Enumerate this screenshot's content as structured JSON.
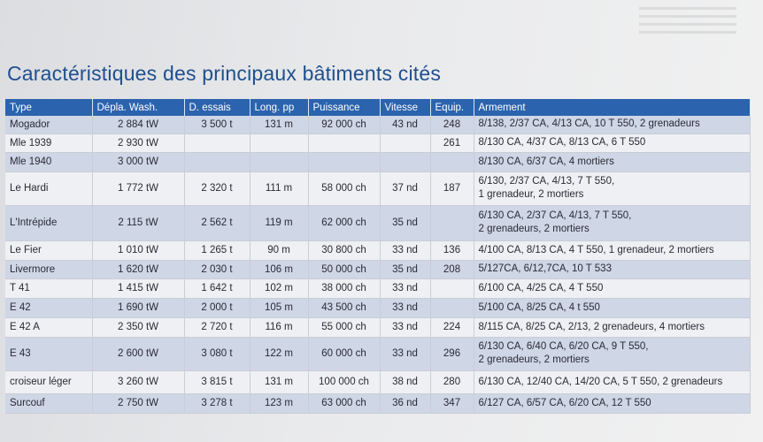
{
  "title": "Caractéristiques des principaux bâtiments cités",
  "table": {
    "headers": [
      "Type",
      "Dépla. Wash.",
      "D. essais",
      "Long. pp",
      "Puissance",
      "Vitesse",
      "Equip.",
      "Armement"
    ],
    "rows": [
      [
        "Mogador",
        "2 884 tW",
        "3 500 t",
        "131 m",
        "92 000 ch",
        "43 nd",
        "248",
        "8/138, 2/37 CA, 4/13 CA, 10 T 550, 2 grenadeurs"
      ],
      [
        "Mle 1939",
        "2 930 tW",
        "",
        "",
        "",
        "",
        "261",
        "8/130 CA, 4/37 CA, 8/13 CA, 6 T 550"
      ],
      [
        "Mle 1940",
        "3 000 tW",
        "",
        "",
        "",
        "",
        "",
        "8/130 CA, 6/37 CA, 4 mortiers"
      ],
      [
        "Le Hardi",
        "1 772 tW",
        "2 320 t",
        "111 m",
        "58 000 ch",
        "37 nd",
        "187",
        "6/130, 2/37 CA, 4/13, 7 T 550,\n1 grenadeur, 2 mortiers"
      ],
      [
        "L'Intrépide",
        "2 115 tW",
        "2 562 t",
        "119 m",
        "62 000 ch",
        "35 nd",
        "",
        "6/130 CA, 2/37 CA, 4/13, 7 T 550,\n2 grenadeurs, 2 mortiers"
      ],
      [
        "Le Fier",
        "1 010 tW",
        "1 265 t",
        "90 m",
        "30 800 ch",
        "33 nd",
        "136",
        "4/100 CA, 8/13 CA, 4 T 550, 1 grenadeur, 2 mortiers"
      ],
      [
        "Livermore",
        "1 620 tW",
        "2 030 t",
        "106 m",
        "50 000 ch",
        "35 nd",
        "208",
        "5/127CA, 6/12,7CA, 10 T 533"
      ],
      [
        "T 41",
        "1 415 tW",
        "1 642 t",
        "102 m",
        "38 000 ch",
        "33 nd",
        "",
        "6/100 CA, 4/25 CA, 4 T 550"
      ],
      [
        "E 42",
        "1 690 tW",
        "2 000 t",
        "105 m",
        "43 500 ch",
        "33 nd",
        "",
        "5/100 CA, 8/25 CA, 4 t 550"
      ],
      [
        "E 42 A",
        "2 350 tW",
        "2 720 t",
        "116 m",
        "55 000 ch",
        "33 nd",
        "224",
        "8/115 CA, 8/25 CA, 2/13, 2 grenadeurs, 4 mortiers"
      ],
      [
        "E 43",
        "2 600 tW",
        "3 080 t",
        "122 m",
        "60 000 ch",
        "33 nd",
        "296",
        "6/130 CA, 6/40 CA, 6/20 CA, 9 T 550,\n2 grenadeurs, 2 mortiers"
      ],
      [
        "croiseur léger",
        "3 260 tW",
        "3 815 t",
        "131 m",
        "100 000 ch",
        "38 nd",
        "280",
        "6/130 CA, 12/40 CA, 14/20 CA, 5 T 550, 2 grenadeurs"
      ],
      [
        "Surcouf",
        "2 750 tW",
        "3 278 t",
        "123 m",
        "63 000 ch",
        "36 nd",
        "347",
        "6/127 CA, 6/57 CA, 6/20 CA, 12 T 550"
      ]
    ]
  }
}
